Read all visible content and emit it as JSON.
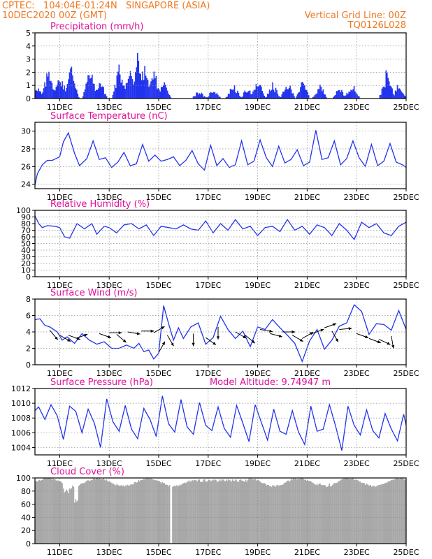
{
  "header": {
    "line1_left": "CPTEC:   104:04E-01:24N   SINGAPORE (ASIA)",
    "line2_left": "10DEC2020 00Z (GMT)",
    "line1_right": "Vertical Grid Line: 00Z",
    "line2_right": "TQ0126L028"
  },
  "colors": {
    "header": "#f07820",
    "title": "#e0109a",
    "series": "#2233ee",
    "cloud": "#a8a8a8",
    "grid": "#8a8a8a"
  },
  "chart_data": [
    {
      "id": "precip",
      "type": "bar",
      "title": "Precipitation (mm/h)",
      "ylim": [
        0,
        5
      ],
      "yticks": [
        0,
        1,
        2,
        3,
        4,
        5
      ],
      "xticks": [
        "11DEC",
        "13DEC",
        "15DEC",
        "17DEC",
        "19DEC",
        "21DEC",
        "23DEC",
        "25DEC"
      ],
      "grid": true
    },
    {
      "id": "temp",
      "type": "line",
      "title": "Surface Temperature (nC)",
      "ylim": [
        23.5,
        31
      ],
      "yticks": [
        24,
        26,
        28,
        30
      ],
      "xticks": [
        "11DEC",
        "13DEC",
        "15DEC",
        "17DEC",
        "19DEC",
        "21DEC",
        "23DEC",
        "25DEC"
      ],
      "grid": true
    },
    {
      "id": "rh",
      "type": "line",
      "title": "Relative Humidity (%)",
      "ylim": [
        0,
        100
      ],
      "yticks": [
        0,
        10,
        20,
        30,
        40,
        50,
        60,
        70,
        80,
        90,
        100
      ],
      "xticks": [
        "11DEC",
        "13DEC",
        "15DEC",
        "17DEC",
        "19DEC",
        "21DEC",
        "23DEC",
        "25DEC"
      ],
      "grid": true
    },
    {
      "id": "wind",
      "type": "line",
      "title": "Surface Wind (m/s)",
      "ylim": [
        0,
        8
      ],
      "yticks": [
        0,
        2,
        4,
        6,
        8
      ],
      "xticks": [
        "11DEC",
        "13DEC",
        "15DEC",
        "17DEC",
        "19DEC",
        "21DEC",
        "23DEC",
        "25DEC"
      ],
      "grid": true
    },
    {
      "id": "pres",
      "type": "line",
      "title": "Surface Pressure (hPa)",
      "annotation": "Model Altitude: 9.74947 m",
      "ylim": [
        1003,
        1012
      ],
      "yticks": [
        1004,
        1006,
        1008,
        1010,
        1012
      ],
      "xticks": [
        "11DEC",
        "13DEC",
        "15DEC",
        "17DEC",
        "19DEC",
        "21DEC",
        "23DEC",
        "25DEC"
      ],
      "grid": true
    },
    {
      "id": "cloud",
      "type": "area",
      "title": "Cloud Cover (%)",
      "ylim": [
        0,
        100
      ],
      "yticks": [
        0,
        20,
        40,
        60,
        80,
        100
      ],
      "xticks": [
        "11DEC",
        "13DEC",
        "15DEC",
        "17DEC",
        "19DEC",
        "21DEC",
        "23DEC",
        "25DEC"
      ],
      "grid": true
    }
  ],
  "series_data": {
    "temp": {
      "days": [
        0,
        0.1,
        0.3,
        0.5,
        0.7,
        1.0,
        1.15,
        1.35,
        1.6,
        1.8,
        2.1,
        2.35,
        2.6,
        2.85,
        3.1,
        3.35,
        3.6,
        3.85,
        4.1,
        4.35,
        4.6,
        4.85,
        5.1,
        5.35,
        5.6,
        5.85,
        6.1,
        6.35,
        6.6,
        6.85,
        7.1,
        7.35,
        7.6,
        7.85,
        8.1,
        8.35,
        8.6,
        8.85,
        9.1,
        9.35,
        9.6,
        9.85,
        10.1,
        10.35,
        10.6,
        10.85,
        11.1,
        11.35,
        11.6,
        11.85,
        12.1,
        12.35,
        12.6,
        12.85,
        13.1,
        13.35,
        13.6,
        13.85,
        14.1,
        14.35,
        14.6,
        14.85,
        15
      ],
      "values": [
        23.9,
        25.2,
        26.2,
        26.7,
        26.7,
        27.1,
        28.8,
        29.8,
        27.5,
        26.1,
        26.9,
        28.9,
        26.8,
        27.0,
        25.9,
        26.5,
        27.6,
        26.1,
        26.3,
        28.5,
        26.6,
        27.3,
        26.6,
        26.8,
        27.1,
        26.1,
        26.7,
        27.8,
        26.3,
        25.6,
        28.4,
        26.1,
        26.9,
        25.9,
        26.2,
        28.9,
        26.2,
        26.6,
        29.0,
        27.0,
        26.0,
        28.3,
        26.4,
        26.8,
        27.9,
        26.1,
        26.5,
        30.1,
        26.8,
        27.0,
        28.9,
        26.2,
        26.9,
        28.9,
        27.0,
        26.0,
        28.5,
        26.1,
        26.6,
        28.6,
        26.5,
        26.2,
        25.9
      ]
    },
    "rh": {
      "days": [
        0,
        0.15,
        0.3,
        0.5,
        0.8,
        1.0,
        1.2,
        1.4,
        1.7,
        2.0,
        2.3,
        2.5,
        2.8,
        3.0,
        3.3,
        3.6,
        3.9,
        4.2,
        4.5,
        4.8,
        5.1,
        5.4,
        5.7,
        6.0,
        6.3,
        6.6,
        6.9,
        7.2,
        7.5,
        7.8,
        8.1,
        8.4,
        8.7,
        9.0,
        9.3,
        9.6,
        9.9,
        10.2,
        10.5,
        10.8,
        11.1,
        11.4,
        11.7,
        12.0,
        12.3,
        12.6,
        12.9,
        13.2,
        13.5,
        13.8,
        14.1,
        14.4,
        14.7,
        15
      ],
      "values": [
        92,
        80,
        74,
        77,
        76,
        74,
        60,
        58,
        80,
        72,
        80,
        64,
        76,
        74,
        66,
        78,
        80,
        72,
        78,
        62,
        76,
        74,
        72,
        78,
        72,
        70,
        84,
        66,
        80,
        70,
        86,
        72,
        76,
        62,
        74,
        76,
        68,
        86,
        70,
        76,
        64,
        78,
        74,
        62,
        80,
        70,
        56,
        82,
        74,
        80,
        66,
        62,
        76,
        82
      ]
    },
    "wind": {
      "days": [
        0,
        0.2,
        0.4,
        0.6,
        0.9,
        1.1,
        1.3,
        1.6,
        1.9,
        2.2,
        2.5,
        2.8,
        3.1,
        3.4,
        3.7,
        4.0,
        4.2,
        4.4,
        4.6,
        4.8,
        5.0,
        5.2,
        5.4,
        5.6,
        5.8,
        6.0,
        6.3,
        6.6,
        6.9,
        7.2,
        7.5,
        7.8,
        8.1,
        8.4,
        8.7,
        9.0,
        9.3,
        9.6,
        9.9,
        10.2,
        10.5,
        10.8,
        11.1,
        11.4,
        11.7,
        12.0,
        12.3,
        12.6,
        12.9,
        13.2,
        13.5,
        13.8,
        14.1,
        14.4,
        14.7,
        15
      ],
      "values": [
        5.5,
        5.6,
        4.8,
        4.6,
        4.0,
        3.0,
        3.4,
        2.6,
        3.8,
        3.0,
        2.5,
        2.8,
        2.0,
        2.0,
        2.4,
        2.0,
        2.6,
        1.6,
        1.8,
        0.7,
        1.4,
        7.2,
        5.0,
        3.0,
        4.5,
        3.2,
        4.6,
        5.1,
        2.5,
        3.3,
        5.9,
        4.3,
        3.2,
        4.1,
        2.2,
        4.6,
        4.3,
        5.5,
        4.5,
        3.6,
        2.6,
        0.4,
        2.9,
        4.3,
        1.9,
        3.0,
        4.7,
        5.1,
        7.3,
        6.5,
        3.7,
        5.0,
        4.9,
        4.2,
        6.6,
        4.3
      ]
    },
    "pres": {
      "days": [
        0,
        0.15,
        0.4,
        0.65,
        0.9,
        1.15,
        1.4,
        1.65,
        1.9,
        2.15,
        2.4,
        2.65,
        2.9,
        3.15,
        3.4,
        3.65,
        3.9,
        4.15,
        4.4,
        4.65,
        4.9,
        5.15,
        5.4,
        5.65,
        5.9,
        6.15,
        6.4,
        6.65,
        6.9,
        7.15,
        7.4,
        7.65,
        7.9,
        8.15,
        8.4,
        8.65,
        8.9,
        9.15,
        9.4,
        9.65,
        9.9,
        10.15,
        10.4,
        10.65,
        10.9,
        11.15,
        11.4,
        11.65,
        11.9,
        12.15,
        12.4,
        12.65,
        12.9,
        13.15,
        13.4,
        13.65,
        13.9,
        14.15,
        14.4,
        14.65,
        14.9,
        15
      ],
      "values": [
        1009.0,
        1009.5,
        1007.8,
        1009.8,
        1008.3,
        1005.1,
        1009.6,
        1008.9,
        1006.0,
        1009.2,
        1007.3,
        1004.0,
        1010.6,
        1007.5,
        1006.2,
        1009.7,
        1006.5,
        1005.2,
        1009.3,
        1007.8,
        1005.5,
        1011.0,
        1007.2,
        1006.1,
        1010.5,
        1006.8,
        1005.8,
        1010.1,
        1007.0,
        1006.3,
        1009.5,
        1006.6,
        1005.4,
        1009.7,
        1007.3,
        1004.8,
        1009.8,
        1007.4,
        1005.0,
        1009.2,
        1006.2,
        1005.8,
        1009.0,
        1006.1,
        1004.4,
        1009.6,
        1006.2,
        1006.5,
        1009.8,
        1006.9,
        1003.6,
        1009.6,
        1007.0,
        1005.7,
        1009.1,
        1006.3,
        1005.3,
        1008.6,
        1006.5,
        1004.9,
        1008.5,
        1007.0
      ]
    }
  }
}
